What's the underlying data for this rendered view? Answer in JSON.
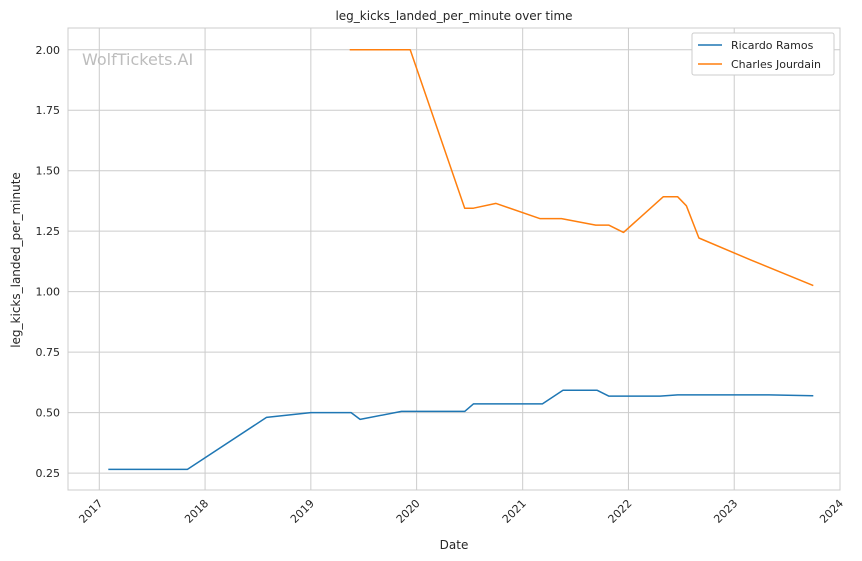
{
  "chart_data": {
    "type": "line",
    "title": "leg_kicks_landed_per_minute over time",
    "xlabel": "Date",
    "ylabel": "leg_kicks_landed_per_minute",
    "watermark": "WolfTickets.AI",
    "x_ticks": [
      "2017",
      "2018",
      "2019",
      "2020",
      "2021",
      "2022",
      "2023",
      "2024"
    ],
    "y_ticks": [
      "0.25",
      "0.50",
      "0.75",
      "1.00",
      "1.25",
      "1.50",
      "1.75",
      "2.00"
    ],
    "xlim": [
      "2016-09-15",
      "2024-01-01"
    ],
    "ylim": [
      0.18,
      2.09
    ],
    "grid": true,
    "legend_position": "top-right",
    "series": [
      {
        "name": "Ricardo Ramos",
        "color": "#1f77b4",
        "points": [
          [
            "2017-02-01",
            0.265
          ],
          [
            "2017-11-01",
            0.265
          ],
          [
            "2018-08-01",
            0.48
          ],
          [
            "2019-01-01",
            0.5
          ],
          [
            "2019-05-20",
            0.5
          ],
          [
            "2019-06-20",
            0.472
          ],
          [
            "2019-11-10",
            0.505
          ],
          [
            "2020-06-15",
            0.505
          ],
          [
            "2020-07-15",
            0.536
          ],
          [
            "2021-03-10",
            0.536
          ],
          [
            "2021-05-20",
            0.592
          ],
          [
            "2021-09-15",
            0.592
          ],
          [
            "2021-10-25",
            0.568
          ],
          [
            "2022-04-20",
            0.568
          ],
          [
            "2022-06-20",
            0.573
          ],
          [
            "2023-05-01",
            0.573
          ],
          [
            "2023-10-01",
            0.57
          ]
        ]
      },
      {
        "name": "Charles Jourdain",
        "color": "#ff7f0e",
        "points": [
          [
            "2019-05-15",
            2.0
          ],
          [
            "2019-12-10",
            2.0
          ],
          [
            "2020-06-15",
            1.345
          ],
          [
            "2020-07-15",
            1.345
          ],
          [
            "2020-10-01",
            1.365
          ],
          [
            "2021-03-01",
            1.302
          ],
          [
            "2021-05-15",
            1.302
          ],
          [
            "2021-09-10",
            1.275
          ],
          [
            "2021-10-25",
            1.275
          ],
          [
            "2021-12-15",
            1.245
          ],
          [
            "2022-05-01",
            1.392
          ],
          [
            "2022-06-20",
            1.392
          ],
          [
            "2022-07-20",
            1.355
          ],
          [
            "2022-09-01",
            1.222
          ],
          [
            "2023-03-01",
            1.13
          ],
          [
            "2023-10-01",
            1.025
          ]
        ]
      }
    ]
  }
}
